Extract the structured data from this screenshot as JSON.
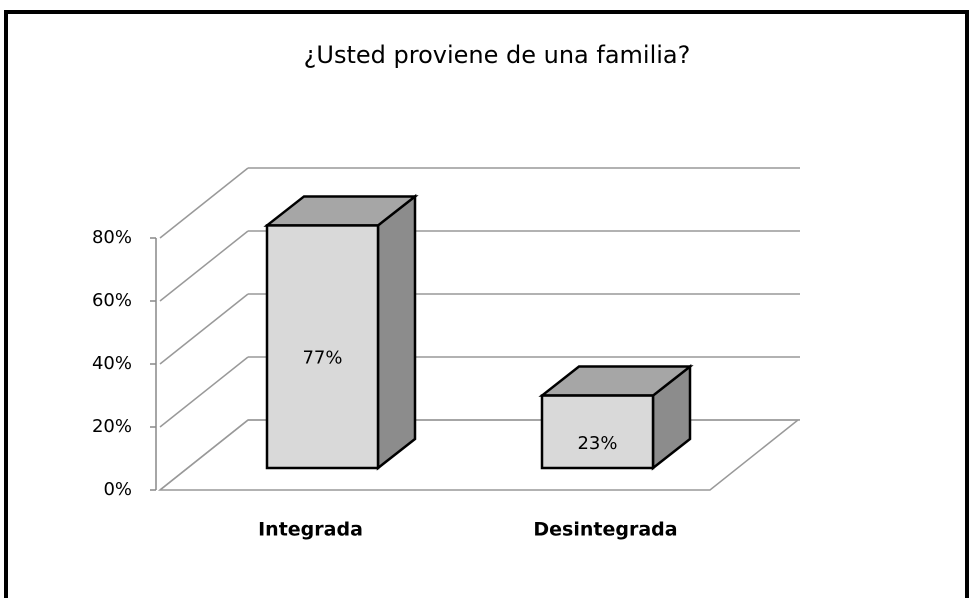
{
  "chart_data": {
    "type": "bar3d",
    "title": "¿Usted proviene de una familia?",
    "categories": [
      "Integrada",
      "Desintegrada"
    ],
    "values": [
      77,
      23
    ],
    "value_labels": [
      "77%",
      "23%"
    ],
    "ylim": [
      0,
      80
    ],
    "yticks": [
      {
        "value": 0,
        "label": "0%"
      },
      {
        "value": 20,
        "label": "20%"
      },
      {
        "value": 40,
        "label": "40%"
      },
      {
        "value": 60,
        "label": "60%"
      },
      {
        "value": 80,
        "label": "80%"
      }
    ],
    "grid": true,
    "color": "#d9d9d9",
    "side_color": "#8c8c8c",
    "top_color": "#a6a6a6"
  }
}
